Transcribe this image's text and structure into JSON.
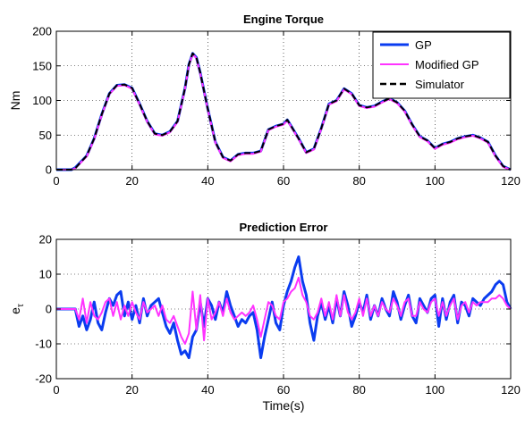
{
  "chart_data": [
    {
      "type": "line",
      "title": "Engine Torque",
      "xlabel": "",
      "ylabel": "Nm",
      "xlim": [
        0,
        120
      ],
      "ylim": [
        0,
        200
      ],
      "xticks": [
        0,
        20,
        40,
        60,
        80,
        100,
        120
      ],
      "yticks": [
        0,
        50,
        100,
        150,
        200
      ],
      "grid": true,
      "legend_position": "top-right",
      "series": [
        {
          "name": "GP",
          "color": "#0a3cf0",
          "x": [
            0,
            4,
            5,
            8,
            10,
            12,
            14,
            16,
            18,
            20,
            22,
            24,
            26,
            28,
            30,
            32,
            34,
            35,
            36,
            37,
            38,
            40,
            42,
            44,
            46,
            48,
            50,
            52,
            54,
            56,
            58,
            60,
            61,
            62,
            64,
            66,
            68,
            70,
            72,
            74,
            76,
            78,
            80,
            82,
            84,
            86,
            88,
            90,
            92,
            94,
            96,
            98,
            100,
            102,
            104,
            106,
            108,
            110,
            112,
            114,
            116,
            118,
            120
          ],
          "y": [
            0,
            0,
            3,
            20,
            45,
            80,
            110,
            122,
            123,
            118,
            95,
            70,
            52,
            50,
            55,
            70,
            118,
            152,
            168,
            162,
            140,
            88,
            40,
            18,
            13,
            22,
            24,
            24,
            27,
            58,
            63,
            66,
            72,
            63,
            45,
            25,
            30,
            60,
            95,
            100,
            117,
            110,
            93,
            90,
            92,
            98,
            103,
            97,
            85,
            65,
            48,
            42,
            31,
            37,
            40,
            45,
            48,
            50,
            46,
            40,
            20,
            5,
            0
          ]
        },
        {
          "name": "Modified GP",
          "color": "#ff33ff",
          "x": [
            0,
            4,
            5,
            8,
            10,
            12,
            14,
            16,
            18,
            20,
            22,
            24,
            26,
            28,
            30,
            32,
            34,
            35,
            36,
            37,
            38,
            40,
            42,
            44,
            46,
            48,
            50,
            52,
            54,
            56,
            58,
            60,
            61,
            62,
            64,
            66,
            68,
            70,
            72,
            74,
            76,
            78,
            80,
            82,
            84,
            86,
            88,
            90,
            92,
            94,
            96,
            98,
            100,
            102,
            104,
            106,
            108,
            110,
            112,
            114,
            116,
            118,
            120
          ],
          "y": [
            0,
            0,
            2,
            19,
            44,
            79,
            109,
            121,
            122,
            117,
            94,
            69,
            51,
            49,
            54,
            69,
            117,
            151,
            167,
            161,
            139,
            87,
            39,
            17,
            12,
            21,
            23,
            23,
            26,
            57,
            62,
            65,
            71,
            62,
            44,
            24,
            29,
            59,
            94,
            99,
            116,
            109,
            92,
            89,
            91,
            97,
            102,
            96,
            84,
            64,
            47,
            41,
            30,
            36,
            39,
            44,
            47,
            49,
            45,
            39,
            19,
            4,
            0
          ]
        },
        {
          "name": "Simulator",
          "color": "#000000",
          "dashed": true,
          "x": [
            0,
            4,
            5,
            8,
            10,
            12,
            14,
            16,
            18,
            20,
            22,
            24,
            26,
            28,
            30,
            32,
            34,
            35,
            36,
            37,
            38,
            40,
            42,
            44,
            46,
            48,
            50,
            52,
            54,
            56,
            58,
            60,
            61,
            62,
            64,
            66,
            68,
            70,
            72,
            74,
            76,
            78,
            80,
            82,
            84,
            86,
            88,
            90,
            92,
            94,
            96,
            98,
            100,
            102,
            104,
            106,
            108,
            110,
            112,
            114,
            116,
            118,
            120
          ],
          "y": [
            0,
            0,
            2,
            20,
            45,
            80,
            110,
            122,
            123,
            118,
            95,
            70,
            52,
            50,
            55,
            70,
            118,
            152,
            168,
            162,
            140,
            88,
            40,
            18,
            13,
            22,
            24,
            24,
            27,
            58,
            63,
            66,
            72,
            63,
            45,
            25,
            30,
            60,
            95,
            100,
            117,
            110,
            93,
            90,
            92,
            98,
            103,
            97,
            85,
            65,
            48,
            42,
            31,
            37,
            40,
            45,
            48,
            50,
            46,
            40,
            20,
            5,
            0
          ]
        }
      ]
    },
    {
      "type": "line",
      "title": "Prediction Error",
      "xlabel": "Time(s)",
      "ylabel": "e_τ",
      "xlim": [
        0,
        120
      ],
      "ylim": [
        -20,
        20
      ],
      "xticks": [
        0,
        20,
        40,
        60,
        80,
        100,
        120
      ],
      "yticks": [
        -20,
        -10,
        0,
        10,
        20
      ],
      "grid": true,
      "series": [
        {
          "name": "GP",
          "color": "#0a3cf0",
          "x": [
            0,
            5,
            6,
            7,
            8,
            9,
            10,
            11,
            12,
            13,
            14,
            15,
            16,
            17,
            18,
            19,
            20,
            21,
            22,
            23,
            24,
            25,
            26,
            27,
            28,
            29,
            30,
            31,
            32,
            33,
            34,
            35,
            36,
            37,
            38,
            39,
            40,
            41,
            42,
            43,
            44,
            45,
            46,
            47,
            48,
            49,
            50,
            51,
            52,
            53,
            54,
            55,
            56,
            57,
            58,
            59,
            60,
            61,
            62,
            63,
            64,
            65,
            66,
            67,
            68,
            69,
            70,
            71,
            72,
            73,
            74,
            75,
            76,
            77,
            78,
            79,
            80,
            81,
            82,
            83,
            84,
            85,
            86,
            87,
            88,
            89,
            90,
            91,
            92,
            93,
            94,
            95,
            96,
            97,
            98,
            99,
            100,
            101,
            102,
            103,
            104,
            105,
            106,
            107,
            108,
            109,
            110,
            111,
            112,
            113,
            114,
            115,
            116,
            117,
            118,
            119,
            120
          ],
          "y": [
            0,
            0,
            -5,
            -2,
            -6,
            -3,
            2,
            -4,
            -6,
            -1,
            3,
            1,
            4,
            5,
            -2,
            2,
            -3,
            1,
            -4,
            3,
            -2,
            1,
            2,
            3,
            -1,
            -5,
            -7,
            -4,
            -9,
            -13,
            -12,
            -14,
            -8,
            -6,
            2,
            -5,
            3,
            1,
            -3,
            2,
            -1,
            5,
            1,
            -2,
            -5,
            -3,
            -4,
            -2,
            -1,
            -6,
            -14,
            -8,
            -3,
            2,
            -4,
            -6,
            1,
            5,
            8,
            12,
            15,
            8,
            4,
            -4,
            -9,
            -2,
            2,
            -3,
            1,
            -4,
            3,
            -2,
            5,
            1,
            -5,
            -2,
            2,
            -1,
            4,
            -3,
            1,
            -2,
            3,
            0,
            -2,
            5,
            2,
            -3,
            1,
            4,
            -2,
            -4,
            3,
            1,
            -1,
            3,
            4,
            -5,
            3,
            -3,
            2,
            4,
            -4,
            2,
            1,
            -2,
            3,
            2,
            1,
            3,
            4,
            5,
            7,
            8,
            7,
            2,
            0
          ]
        },
        {
          "name": "Modified GP",
          "color": "#ff33ff",
          "x": [
            0,
            5,
            6,
            7,
            8,
            9,
            10,
            11,
            12,
            13,
            14,
            15,
            16,
            17,
            18,
            19,
            20,
            21,
            22,
            23,
            24,
            25,
            26,
            27,
            28,
            29,
            30,
            31,
            32,
            33,
            34,
            35,
            36,
            37,
            38,
            39,
            40,
            41,
            42,
            43,
            44,
            45,
            46,
            47,
            48,
            49,
            50,
            51,
            52,
            53,
            54,
            55,
            56,
            57,
            58,
            59,
            60,
            61,
            62,
            63,
            64,
            65,
            66,
            67,
            68,
            69,
            70,
            71,
            72,
            73,
            74,
            75,
            76,
            77,
            78,
            79,
            80,
            81,
            82,
            83,
            84,
            85,
            86,
            87,
            88,
            89,
            90,
            91,
            92,
            93,
            94,
            95,
            96,
            97,
            98,
            99,
            100,
            101,
            102,
            103,
            104,
            105,
            106,
            107,
            108,
            109,
            110,
            111,
            112,
            113,
            114,
            115,
            116,
            117,
            118,
            119,
            120
          ],
          "y": [
            0,
            0,
            -3,
            3,
            -4,
            2,
            -2,
            -3,
            -1,
            2,
            3,
            -2,
            2,
            -3,
            1,
            -2,
            2,
            -1,
            -3,
            2,
            -1,
            0,
            1,
            -2,
            1,
            -3,
            -4,
            -2,
            -5,
            -8,
            -10,
            -7,
            5,
            -6,
            4,
            -9,
            3,
            -3,
            -1,
            2,
            -2,
            3,
            -1,
            -3,
            -2,
            -1,
            -2,
            -1,
            1,
            -3,
            -8,
            -3,
            2,
            1,
            -2,
            -3,
            2,
            3,
            5,
            6,
            9,
            4,
            2,
            -2,
            -3,
            -1,
            3,
            -2,
            2,
            -3,
            4,
            -2,
            4,
            -1,
            -3,
            -1,
            3,
            -2,
            3,
            -2,
            1,
            -2,
            2,
            0,
            -1,
            3,
            1,
            -2,
            2,
            3,
            -2,
            -2,
            2,
            0,
            -1,
            2,
            3,
            -2,
            2,
            -2,
            1,
            3,
            -3,
            1,
            2,
            -1,
            2,
            1,
            2,
            2,
            2,
            3,
            3,
            4,
            3,
            1,
            0
          ]
        }
      ]
    }
  ]
}
